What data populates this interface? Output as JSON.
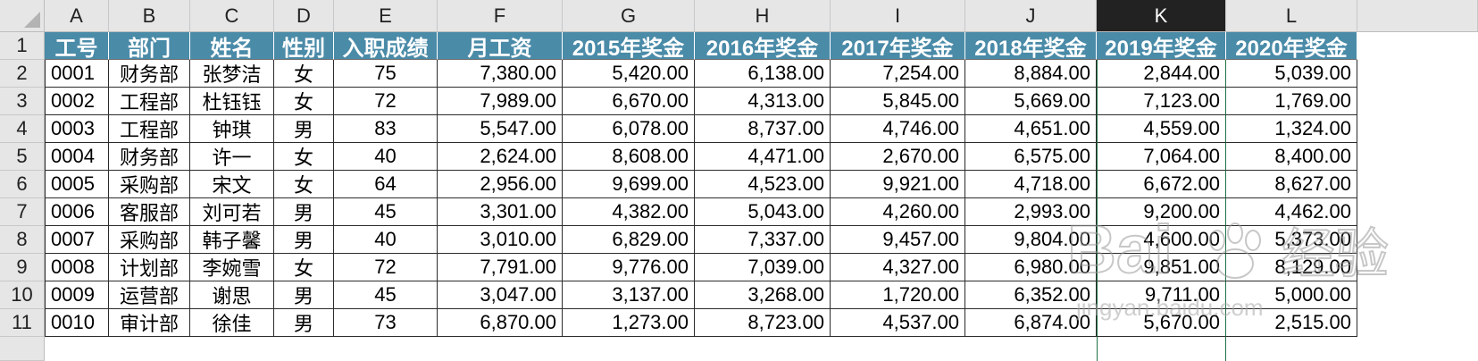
{
  "columns": [
    "A",
    "B",
    "C",
    "D",
    "E",
    "F",
    "G",
    "H",
    "I",
    "J",
    "K",
    "L"
  ],
  "selected_column": "K",
  "row_numbers": [
    "1",
    "2",
    "3",
    "4",
    "5",
    "6",
    "7",
    "8",
    "9",
    "10",
    "11"
  ],
  "headers": [
    "工号",
    "部门",
    "姓名",
    "性别",
    "入职成绩",
    "月工资",
    "2015年奖金",
    "2016年奖金",
    "2017年奖金",
    "2018年奖金",
    "2019年奖金",
    "2020年奖金"
  ],
  "rows": [
    [
      "0001",
      "财务部",
      "张梦洁",
      "女",
      "75",
      "7,380.00",
      "5,420.00",
      "6,138.00",
      "7,254.00",
      "8,884.00",
      "2,844.00",
      "5,039.00"
    ],
    [
      "0002",
      "工程部",
      "杜钰钰",
      "女",
      "72",
      "7,989.00",
      "6,670.00",
      "4,313.00",
      "5,845.00",
      "5,669.00",
      "7,123.00",
      "1,769.00"
    ],
    [
      "0003",
      "工程部",
      "钟琪",
      "男",
      "83",
      "5,547.00",
      "6,078.00",
      "8,737.00",
      "4,746.00",
      "4,651.00",
      "4,559.00",
      "1,324.00"
    ],
    [
      "0004",
      "财务部",
      "许一",
      "女",
      "40",
      "2,624.00",
      "8,608.00",
      "4,471.00",
      "2,670.00",
      "6,575.00",
      "7,064.00",
      "8,400.00"
    ],
    [
      "0005",
      "采购部",
      "宋文",
      "女",
      "64",
      "2,956.00",
      "9,699.00",
      "4,523.00",
      "9,921.00",
      "4,718.00",
      "6,672.00",
      "8,627.00"
    ],
    [
      "0006",
      "客服部",
      "刘可若",
      "男",
      "45",
      "3,301.00",
      "4,382.00",
      "5,043.00",
      "4,260.00",
      "2,993.00",
      "9,200.00",
      "4,462.00"
    ],
    [
      "0007",
      "采购部",
      "韩子馨",
      "男",
      "40",
      "3,010.00",
      "6,829.00",
      "7,337.00",
      "9,457.00",
      "9,804.00",
      "4,600.00",
      "5,373.00"
    ],
    [
      "0008",
      "计划部",
      "李婉雪",
      "女",
      "72",
      "7,791.00",
      "9,776.00",
      "7,039.00",
      "4,327.00",
      "6,980.00",
      "9,851.00",
      "8,129.00"
    ],
    [
      "0009",
      "运营部",
      "谢思",
      "男",
      "45",
      "3,047.00",
      "3,137.00",
      "3,268.00",
      "1,720.00",
      "6,352.00",
      "9,711.00",
      "5,000.00"
    ],
    [
      "0010",
      "审计部",
      "徐佳",
      "男",
      "73",
      "6,870.00",
      "1,273.00",
      "8,723.00",
      "4,537.00",
      "6,874.00",
      "5,670.00",
      "2,515.00"
    ]
  ],
  "watermark": {
    "brand": "Bai",
    "brand_cn": "经验",
    "url": "jingyan.baidu.com"
  }
}
